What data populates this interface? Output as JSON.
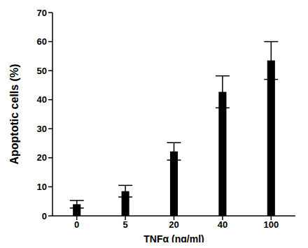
{
  "chart_data": {
    "type": "bar",
    "x_label": "TNFα (ng/ml)",
    "y_label": "Apoptotic cells (%)",
    "categories": [
      "0",
      "5",
      "20",
      "40",
      "100"
    ],
    "values": [
      4,
      8.5,
      22.2,
      42.7,
      53.5
    ],
    "errors": [
      1.3,
      2,
      3,
      5.5,
      6.5
    ],
    "color": "#000000",
    "ylim": [
      0,
      70
    ],
    "yticks": [
      0,
      10,
      20,
      30,
      40,
      50,
      60,
      70
    ],
    "grid": false
  }
}
